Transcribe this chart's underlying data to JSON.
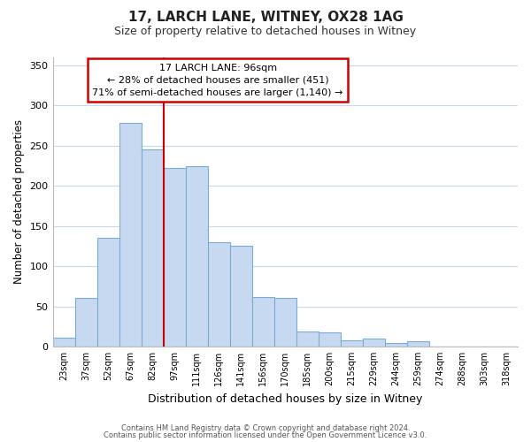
{
  "title_line1": "17, LARCH LANE, WITNEY, OX28 1AG",
  "title_line2": "Size of property relative to detached houses in Witney",
  "xlabel": "Distribution of detached houses by size in Witney",
  "ylabel": "Number of detached properties",
  "bar_labels": [
    "23sqm",
    "37sqm",
    "52sqm",
    "67sqm",
    "82sqm",
    "97sqm",
    "111sqm",
    "126sqm",
    "141sqm",
    "156sqm",
    "170sqm",
    "185sqm",
    "200sqm",
    "215sqm",
    "229sqm",
    "244sqm",
    "259sqm",
    "274sqm",
    "288sqm",
    "303sqm",
    "318sqm"
  ],
  "bar_values": [
    11,
    60,
    135,
    278,
    245,
    222,
    225,
    130,
    125,
    62,
    60,
    19,
    17,
    8,
    10,
    4,
    6,
    0,
    0,
    0,
    0
  ],
  "bar_color": "#c6d9f0",
  "bar_edge_color": "#7aadd4",
  "marker_color": "#cc0000",
  "annotation_line1": "17 LARCH LANE: 96sqm",
  "annotation_line2": "← 28% of detached houses are smaller (451)",
  "annotation_line3": "71% of semi-detached houses are larger (1,140) →",
  "ylim": [
    0,
    360
  ],
  "yticks": [
    0,
    50,
    100,
    150,
    200,
    250,
    300,
    350
  ],
  "footer_line1": "Contains HM Land Registry data © Crown copyright and database right 2024.",
  "footer_line2": "Contains public sector information licensed under the Open Government Licence v3.0.",
  "background_color": "#ffffff",
  "grid_color": "#c8d8e8"
}
